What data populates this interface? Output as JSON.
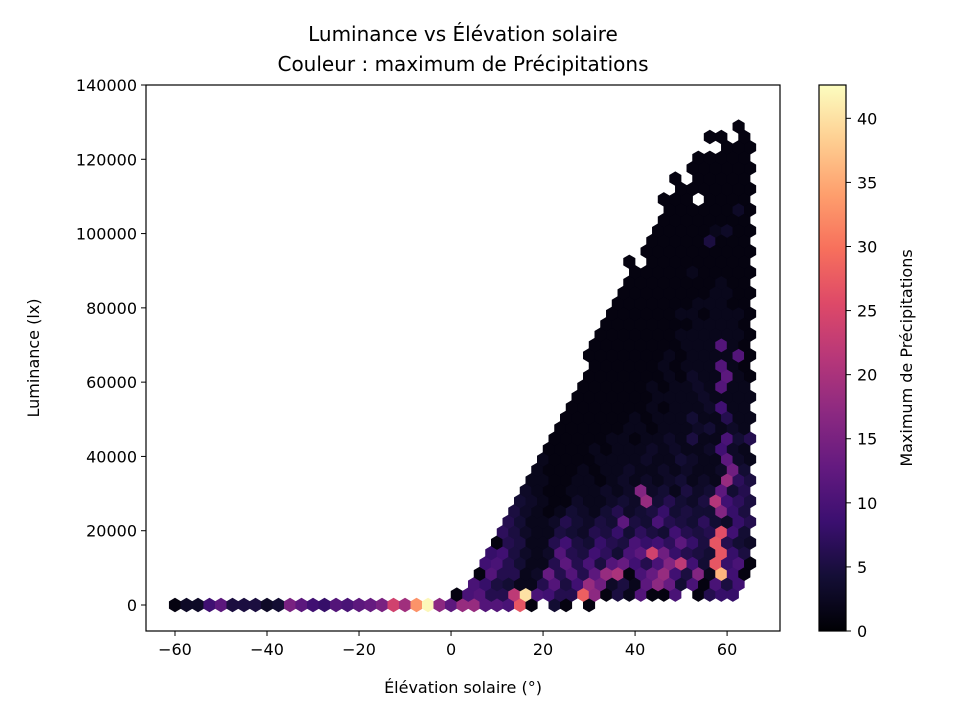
{
  "chart_data": {
    "type": "hexbin",
    "title": [
      "Luminance vs Élévation solaire",
      "Couleur : maximum de Précipitations"
    ],
    "xlabel": "Élévation solaire (°)",
    "ylabel": "Luminance (lx)",
    "xlim": [
      -66.3,
      71.5
    ],
    "ylim": [
      -7000,
      140000
    ],
    "xticks": [
      -60,
      -40,
      -20,
      0,
      20,
      40,
      60
    ],
    "xtick_labels": [
      "−60",
      "−40",
      "−20",
      "0",
      "20",
      "40",
      "60"
    ],
    "yticks": [
      0,
      20000,
      40000,
      60000,
      80000,
      100000,
      120000,
      140000
    ],
    "ytick_labels": [
      "0",
      "20000",
      "40000",
      "60000",
      "80000",
      "100000",
      "120000",
      "140000"
    ],
    "grid": false,
    "colormap": "magma",
    "colorbar": {
      "label": "Maximum de Précipitations",
      "range": [
        0,
        42.6
      ],
      "ticks": [
        0,
        5,
        10,
        15,
        20,
        25,
        30,
        35,
        40
      ],
      "tick_labels": [
        "0",
        "5",
        "10",
        "15",
        "20",
        "25",
        "30",
        "35",
        "40"
      ]
    },
    "hex_x_step": 2.5,
    "hex_rows": [
      {
        "y": 0,
        "x0": -60,
        "v": [
          1,
          3,
          3,
          9,
          12,
          5,
          5,
          5,
          3,
          4,
          15,
          12,
          9,
          8,
          11,
          10,
          12,
          13,
          15,
          24,
          19,
          33,
          42,
          17,
          12,
          18,
          18,
          11,
          11,
          10,
          27,
          1,
          null,
          4,
          1,
          null,
          1
        ]
      },
      {
        "y": 2800,
        "x0": 1.25,
        "v": [
          1,
          10,
          11,
          6,
          6,
          22,
          40,
          10,
          9,
          6,
          6,
          28,
          17,
          1,
          5,
          2,
          11,
          1,
          1,
          10,
          null,
          1,
          6,
          8,
          8
        ]
      },
      {
        "y": 5600,
        "x0": 5,
        "v": [
          10,
          8,
          5,
          4,
          2,
          2,
          6,
          11,
          5,
          9,
          18,
          14,
          3,
          5,
          2,
          12,
          17,
          13,
          4,
          10,
          1,
          10,
          5,
          9
        ]
      },
      {
        "y": 8400,
        "x0": 6.25,
        "v": [
          1,
          11,
          6,
          6,
          2,
          3,
          13,
          6,
          11,
          6,
          12,
          18,
          20,
          1,
          10,
          13,
          18,
          9,
          5,
          16,
          2,
          36,
          9,
          1
        ]
      },
      {
        "y": 11200,
        "x0": 7.5,
        "v": [
          9,
          10,
          6,
          4,
          2,
          2,
          6,
          12,
          6,
          10,
          5,
          11,
          13,
          9,
          6,
          10,
          16,
          22,
          9,
          4,
          27,
          8,
          10,
          1
        ]
      },
      {
        "y": 14000,
        "x0": 8.75,
        "v": [
          8,
          9,
          5,
          3,
          2,
          3,
          11,
          6,
          5,
          9,
          7,
          4,
          10,
          12,
          24,
          14,
          8,
          6,
          5,
          4,
          27,
          8,
          5
        ]
      },
      {
        "y": 16800,
        "x0": 10,
        "v": [
          1,
          6,
          5,
          2,
          2,
          6,
          9,
          5,
          4,
          8,
          6,
          5,
          10,
          8,
          9,
          7,
          12,
          8,
          5,
          27,
          6,
          4,
          3
        ]
      },
      {
        "y": 19600,
        "x0": 11.25,
        "v": [
          7,
          5,
          3,
          2,
          2,
          5,
          4,
          3,
          6,
          5,
          8,
          4,
          7,
          5,
          4,
          9,
          6,
          5,
          6,
          26,
          9,
          4
        ]
      },
      {
        "y": 22400,
        "x0": 12.5,
        "v": [
          6,
          4,
          2,
          2,
          3,
          6,
          4,
          3,
          5,
          4,
          12,
          5,
          4,
          10,
          6,
          5,
          4,
          7,
          4,
          3,
          8,
          6
        ]
      },
      {
        "y": 25200,
        "x0": 13.75,
        "v": [
          5,
          3,
          2,
          1,
          2,
          4,
          3,
          2,
          4,
          6,
          3,
          4,
          5,
          8,
          4,
          5,
          4,
          4,
          16,
          8,
          5
        ]
      },
      {
        "y": 28000,
        "x0": 15,
        "v": [
          4,
          3,
          2,
          1,
          1,
          3,
          2,
          2,
          3,
          4,
          3,
          18,
          4,
          6,
          4,
          3,
          5,
          21,
          9,
          7,
          5
        ]
      },
      {
        "y": 30800,
        "x0": 16.25,
        "v": [
          3,
          2,
          1,
          1,
          2,
          2,
          2,
          3,
          2,
          3,
          16,
          3,
          4,
          2,
          5,
          3,
          4,
          12,
          4,
          6
        ]
      },
      {
        "y": 33600,
        "x0": 17.5,
        "v": [
          2,
          2,
          1,
          1,
          2,
          2,
          1,
          2,
          3,
          2,
          3,
          2,
          3,
          4,
          2,
          3,
          2,
          18,
          7,
          5
        ]
      },
      {
        "y": 36400,
        "x0": 18.75,
        "v": [
          2,
          1,
          1,
          1,
          2,
          1,
          2,
          2,
          3,
          2,
          2,
          3,
          2,
          3,
          2,
          2,
          3,
          14,
          4
        ]
      },
      {
        "y": 39200,
        "x0": 20,
        "v": [
          2,
          1,
          1,
          1,
          1,
          2,
          2,
          2,
          2,
          3,
          2,
          2,
          4,
          3,
          2,
          2,
          12,
          3,
          2
        ]
      },
      {
        "y": 42000,
        "x0": 21.25,
        "v": [
          1,
          1,
          1,
          1,
          2,
          1,
          2,
          2,
          2,
          3,
          2,
          3,
          2,
          2,
          3,
          9,
          3,
          2
        ]
      },
      {
        "y": 44800,
        "x0": 22.5,
        "v": [
          1,
          1,
          1,
          1,
          1,
          2,
          2,
          1,
          2,
          2,
          3,
          2,
          5,
          2,
          2,
          10,
          4,
          6
        ]
      },
      {
        "y": 47600,
        "x0": 23.75,
        "v": [
          1,
          1,
          1,
          1,
          1,
          1,
          2,
          2,
          1,
          2,
          2,
          2,
          3,
          4,
          2,
          3,
          2
        ]
      },
      {
        "y": 50400,
        "x0": 25,
        "v": [
          1,
          1,
          1,
          1,
          1,
          1,
          2,
          1,
          2,
          2,
          2,
          4,
          2,
          2,
          6,
          2,
          2
        ]
      },
      {
        "y": 53200,
        "x0": 26.25,
        "v": [
          1,
          1,
          1,
          1,
          1,
          1,
          1,
          2,
          1,
          2,
          2,
          2,
          3,
          9,
          2,
          2
        ]
      },
      {
        "y": 56000,
        "x0": 27.5,
        "v": [
          1,
          1,
          1,
          1,
          1,
          1,
          1,
          2,
          2,
          2,
          2,
          3,
          2,
          2,
          2,
          2
        ]
      },
      {
        "y": 58800,
        "x0": 28.75,
        "v": [
          1,
          1,
          1,
          1,
          1,
          1,
          2,
          1,
          2,
          2,
          3,
          2,
          11,
          2,
          2
        ]
      },
      {
        "y": 61600,
        "x0": 30,
        "v": [
          1,
          1,
          1,
          1,
          1,
          1,
          1,
          2,
          1,
          3,
          2,
          2,
          12,
          2,
          1
        ]
      },
      {
        "y": 64400,
        "x0": 31.25,
        "v": [
          1,
          1,
          1,
          1,
          1,
          1,
          2,
          1,
          2,
          2,
          2,
          11,
          2,
          1
        ]
      },
      {
        "y": 67200,
        "x0": 30,
        "v": [
          1,
          1,
          1,
          1,
          1,
          1,
          1,
          2,
          1,
          2,
          2,
          2,
          2,
          11,
          1
        ]
      },
      {
        "y": 70000,
        "x0": 31.25,
        "v": [
          1,
          1,
          1,
          1,
          1,
          1,
          1,
          1,
          2,
          2,
          2,
          11,
          2,
          1
        ]
      },
      {
        "y": 72800,
        "x0": 32.5,
        "v": [
          1,
          1,
          1,
          1,
          1,
          1,
          1,
          2,
          2,
          2,
          2,
          2,
          2,
          1
        ]
      },
      {
        "y": 75600,
        "x0": 33.75,
        "v": [
          1,
          1,
          1,
          1,
          1,
          1,
          1,
          1,
          2,
          2,
          2,
          2,
          1
        ]
      },
      {
        "y": 78400,
        "x0": 35,
        "v": [
          1,
          1,
          1,
          1,
          1,
          1,
          2,
          2,
          1,
          2,
          2,
          2,
          1
        ]
      },
      {
        "y": 81200,
        "x0": 36.25,
        "v": [
          1,
          1,
          1,
          1,
          1,
          1,
          1,
          2,
          2,
          2,
          1,
          1
        ]
      },
      {
        "y": 84000,
        "x0": 37.5,
        "v": [
          1,
          1,
          1,
          1,
          1,
          1,
          1,
          1,
          2,
          2,
          1,
          1
        ]
      },
      {
        "y": 86800,
        "x0": 38.75,
        "v": [
          1,
          1,
          1,
          1,
          1,
          1,
          1,
          1,
          2,
          1,
          1
        ]
      },
      {
        "y": 89600,
        "x0": 40,
        "v": [
          1,
          1,
          1,
          1,
          1,
          2,
          1,
          1,
          1,
          1,
          1
        ]
      },
      {
        "y": 92400,
        "x0": 38.75,
        "v": [
          1,
          null,
          1,
          1,
          1,
          1,
          1,
          1,
          1,
          1,
          1
        ]
      },
      {
        "y": 95200,
        "x0": 42.5,
        "v": [
          1,
          1,
          1,
          1,
          1,
          1,
          1,
          1,
          1,
          1
        ]
      },
      {
        "y": 98000,
        "x0": 43.75,
        "v": [
          1,
          1,
          1,
          1,
          1,
          5,
          1,
          1,
          1
        ]
      },
      {
        "y": 100800,
        "x0": 45,
        "v": [
          1,
          1,
          1,
          1,
          1,
          2,
          3,
          1,
          1
        ]
      },
      {
        "y": 103600,
        "x0": 46.25,
        "v": [
          1,
          1,
          1,
          1,
          1,
          1,
          1,
          1
        ]
      },
      {
        "y": 106400,
        "x0": 47.5,
        "v": [
          1,
          1,
          1,
          1,
          1,
          1,
          3,
          1
        ]
      },
      {
        "y": 109200,
        "x0": 46.25,
        "v": [
          1,
          1,
          1,
          null,
          1,
          1,
          1,
          1
        ]
      },
      {
        "y": 112000,
        "x0": 50,
        "v": [
          1,
          1,
          1,
          1,
          1,
          1,
          1
        ]
      },
      {
        "y": 114800,
        "x0": 48.75,
        "v": [
          1,
          null,
          1,
          1,
          1,
          1,
          1
        ]
      },
      {
        "y": 117600,
        "x0": 52.5,
        "v": [
          1,
          1,
          1,
          1,
          1,
          1
        ]
      },
      {
        "y": 120400,
        "x0": 53.75,
        "v": [
          1,
          1,
          1,
          1,
          1
        ]
      },
      {
        "y": 123200,
        "x0": 60,
        "v": [
          1,
          1,
          1
        ]
      },
      {
        "y": 126000,
        "x0": 56.25,
        "v": [
          1,
          1,
          null,
          1
        ]
      },
      {
        "y": 128800,
        "x0": 62.5,
        "v": [
          1
        ]
      }
    ]
  }
}
